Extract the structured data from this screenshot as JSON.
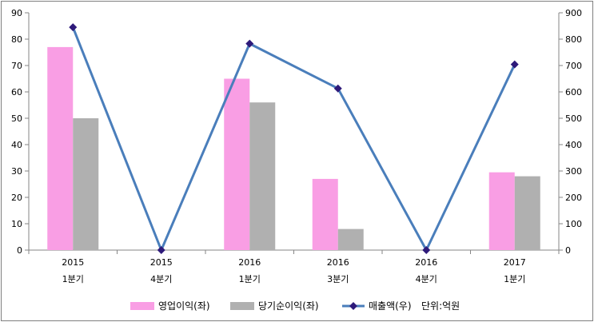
{
  "chart_data": {
    "type": "bar",
    "categories": [
      [
        "2015",
        "1분기"
      ],
      [
        "2015",
        "4분기"
      ],
      [
        "2016",
        "1분기"
      ],
      [
        "2016",
        "3분기"
      ],
      [
        "2016",
        "4분기"
      ],
      [
        "2017",
        "1분기"
      ]
    ],
    "series": [
      {
        "name": "영업이익(좌)",
        "type": "bar",
        "axis": "left",
        "color": "#f99ee4",
        "values": [
          77,
          0,
          65,
          27,
          0,
          29.5
        ]
      },
      {
        "name": "당기순이익(좌)",
        "type": "bar",
        "axis": "left",
        "color": "#b0b0b0",
        "values": [
          50,
          0,
          56,
          8,
          0,
          28
        ]
      },
      {
        "name": "매출액(우)",
        "type": "line",
        "axis": "right",
        "color": "#4a7ebb",
        "marker_color": "#2e1a7a",
        "values": [
          845,
          0,
          783,
          613,
          0,
          704
        ]
      }
    ],
    "y_left": {
      "min": 0,
      "max": 90,
      "step": 10
    },
    "y_right": {
      "min": 0,
      "max": 900,
      "step": 100
    },
    "unit_note": "단위:억원",
    "grid": false,
    "legend_position": "bottom"
  }
}
